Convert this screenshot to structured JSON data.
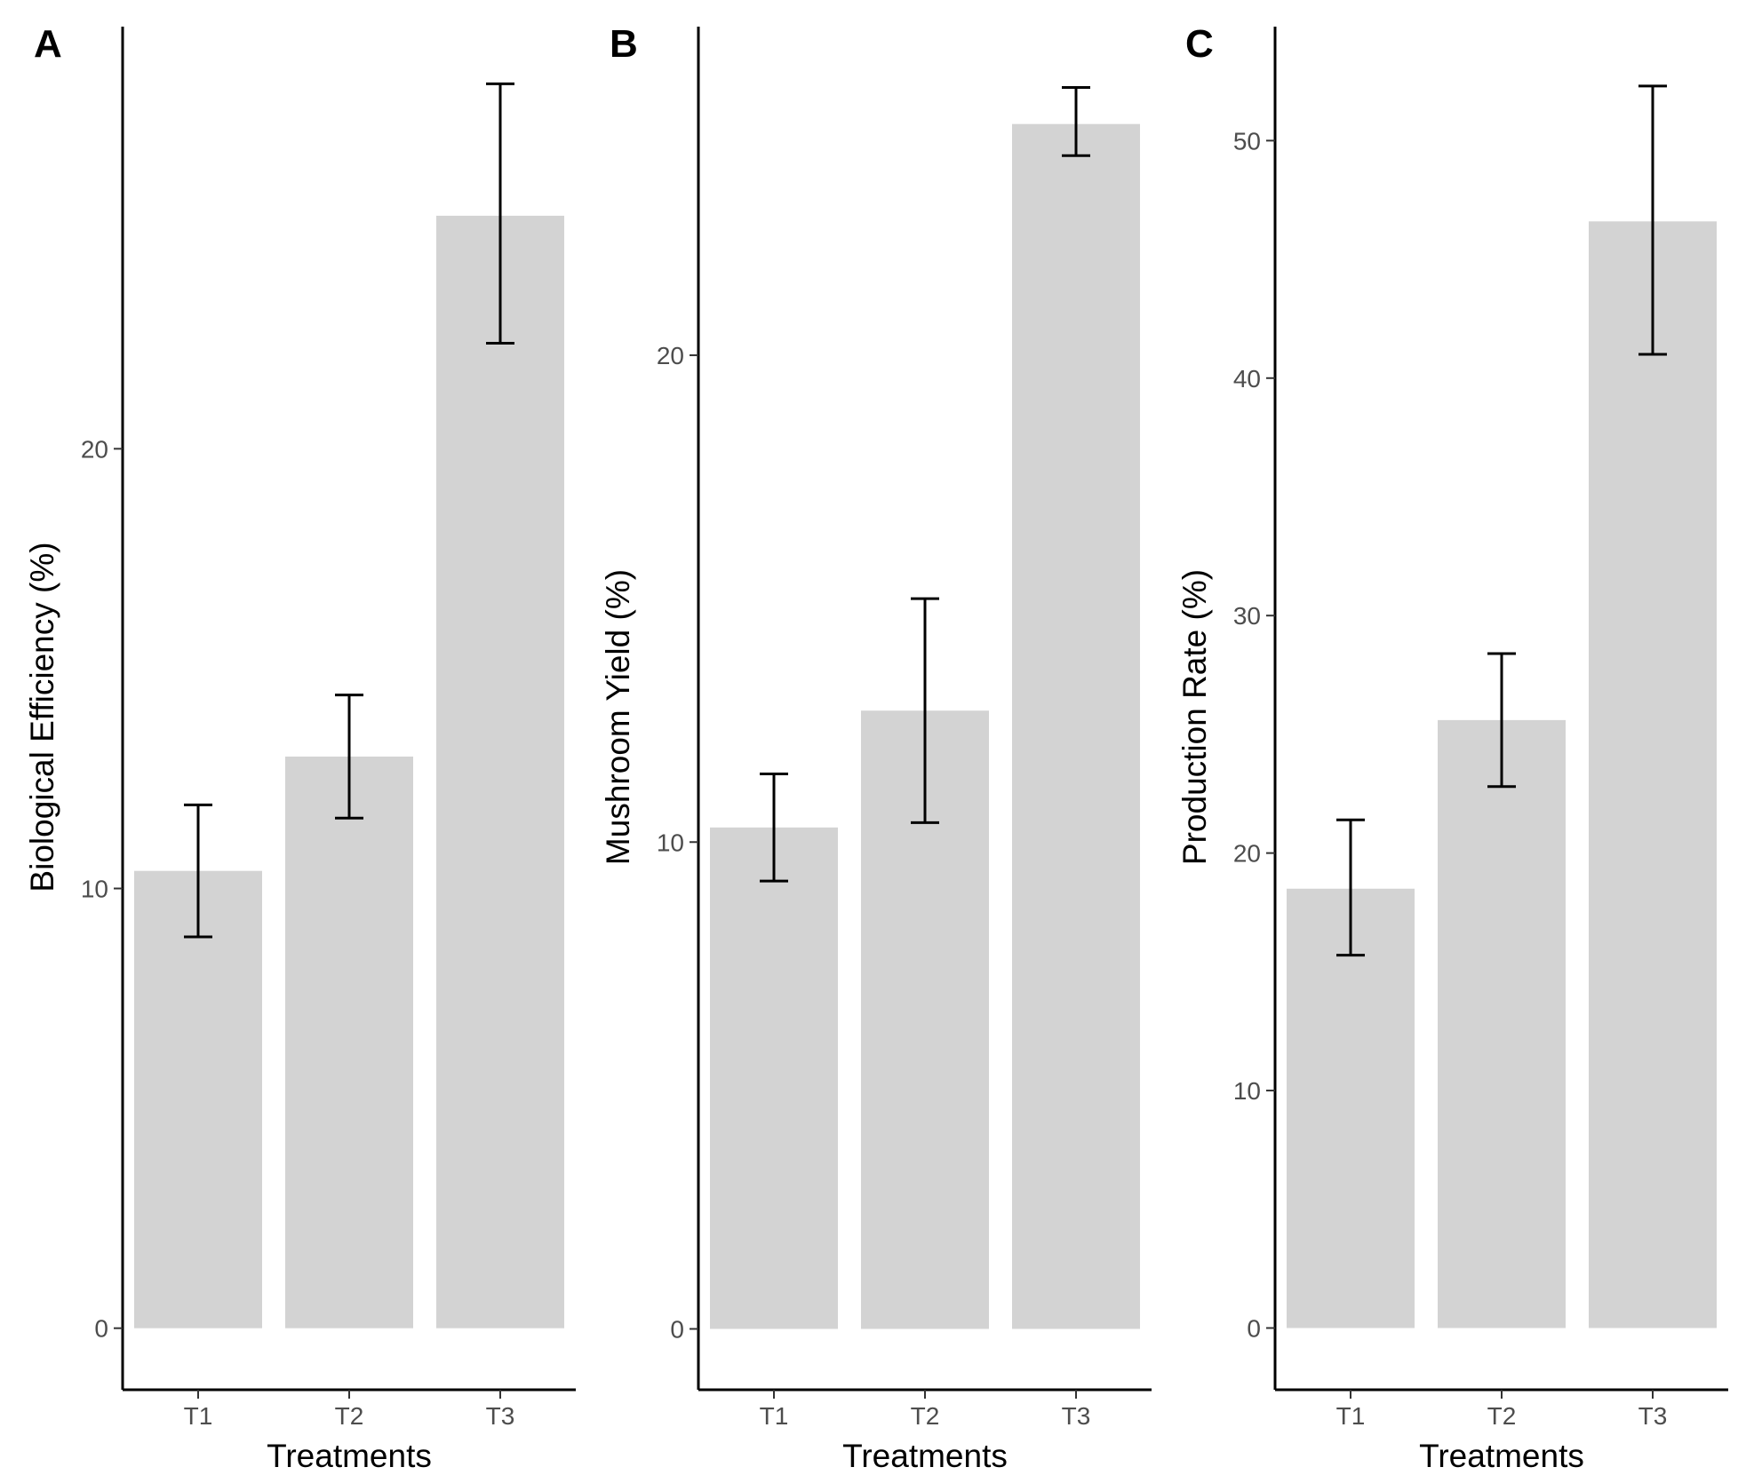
{
  "chart_data": [
    {
      "type": "bar",
      "panel_label": "A",
      "categories": [
        "T1",
        "T2",
        "T3"
      ],
      "values": [
        10.4,
        13.0,
        25.3
      ],
      "error_bars": [
        {
          "low": 8.9,
          "high": 11.9
        },
        {
          "low": 11.6,
          "high": 14.4
        },
        {
          "low": 22.4,
          "high": 28.3
        }
      ],
      "xlabel": "Treatments",
      "ylabel": "Biological Efficiency (%)",
      "yticks": [
        0,
        10,
        20
      ],
      "ylim": [
        -1.4,
        29.6
      ],
      "bar_color": "#d3d3d3"
    },
    {
      "type": "bar",
      "panel_label": "B",
      "categories": [
        "T1",
        "T2",
        "T3"
      ],
      "values": [
        10.3,
        12.7,
        24.75
      ],
      "error_bars": [
        {
          "low": 9.2,
          "high": 11.4
        },
        {
          "low": 10.4,
          "high": 15.0
        },
        {
          "low": 24.1,
          "high": 25.5
        }
      ],
      "xlabel": "Treatments",
      "ylabel": "Mushroom Yield (%)",
      "yticks": [
        0,
        10,
        20
      ],
      "ylim": [
        -1.25,
        26.75
      ],
      "bar_color": "#d3d3d3"
    },
    {
      "type": "bar",
      "panel_label": "C",
      "categories": [
        "T1",
        "T2",
        "T3"
      ],
      "values": [
        18.5,
        25.6,
        46.6
      ],
      "error_bars": [
        {
          "low": 15.7,
          "high": 21.4
        },
        {
          "low": 22.8,
          "high": 28.4
        },
        {
          "low": 41.0,
          "high": 52.3
        }
      ],
      "xlabel": "Treatments",
      "ylabel": "Production Rate (%)",
      "yticks": [
        0,
        10,
        20,
        30,
        40,
        50
      ],
      "ylim": [
        -2.6,
        54.8
      ],
      "bar_color": "#d3d3d3"
    }
  ]
}
